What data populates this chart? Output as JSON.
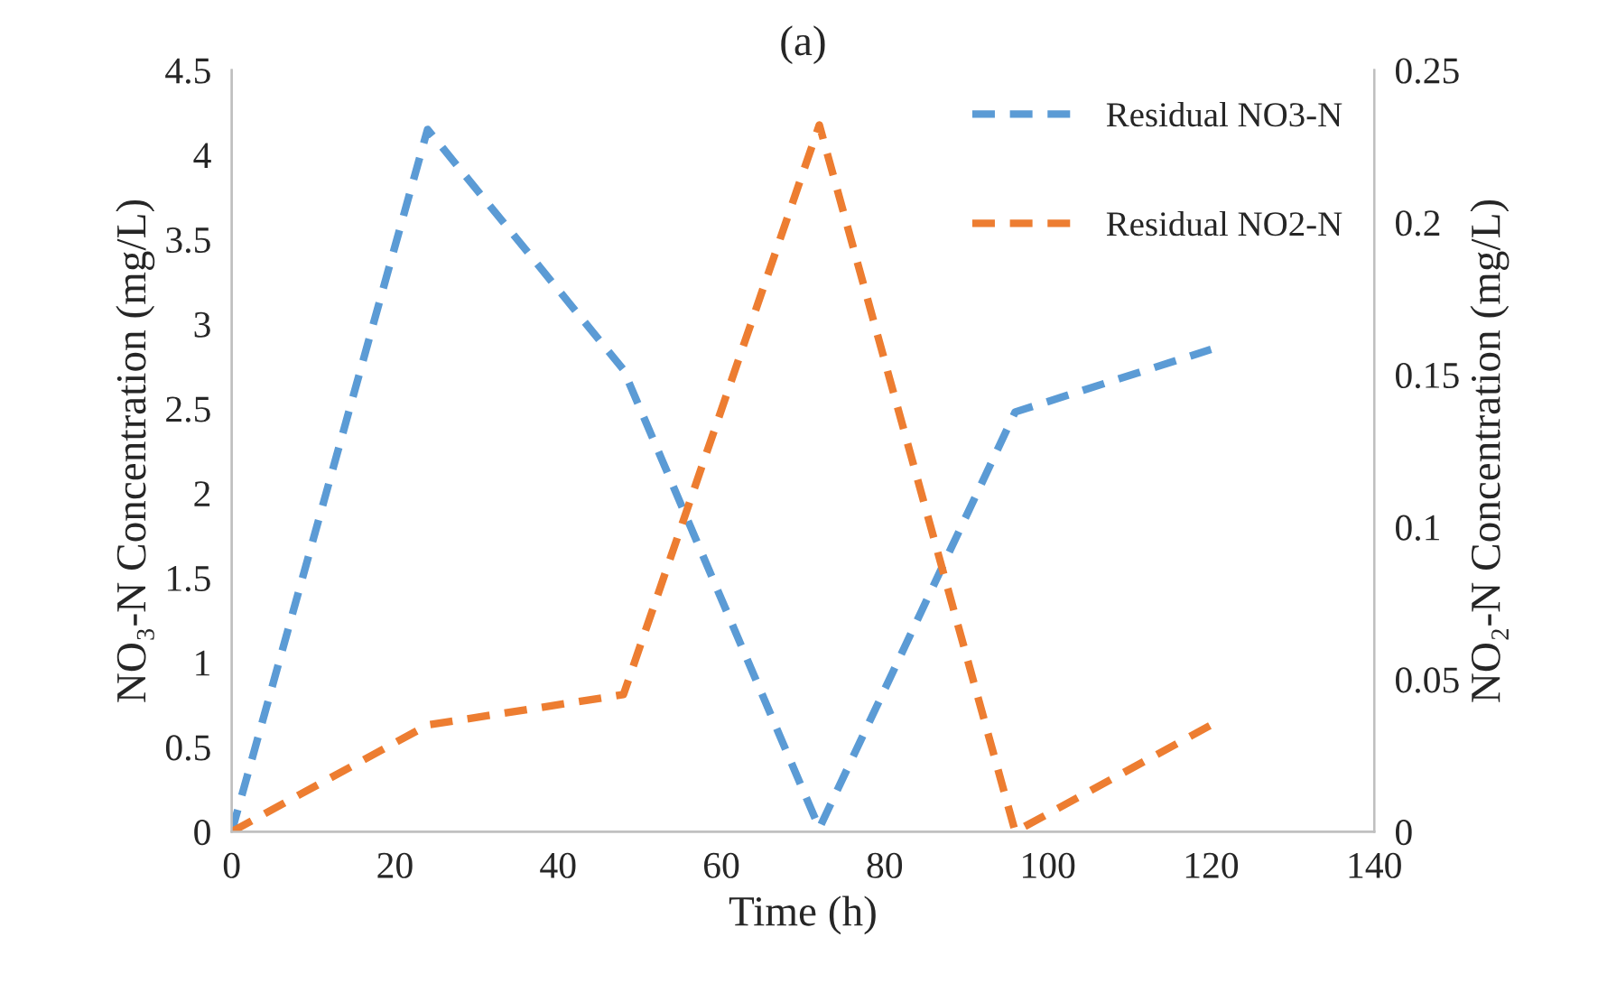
{
  "chart_data": {
    "type": "line",
    "title": "(a)",
    "xlabel": "Time (h)",
    "ylabel": "NO₃-N Concentration (mg/L)",
    "y2label": "NO₂-N Concentration (mg/L)",
    "x": [
      0,
      24,
      48,
      72,
      96,
      120
    ],
    "series": [
      {
        "name": "Residual NO3-N",
        "color": "#5b9bd5",
        "values": [
          0,
          4.15,
          2.73,
          0.02,
          2.48,
          2.85
        ]
      },
      {
        "name": "Residual NO2-N",
        "color": "#ed7d31",
        "values": [
          0,
          0.035,
          0.045,
          0.232,
          0,
          0.035
        ],
        "axis": "y2"
      }
    ],
    "xlim": [
      0,
      140
    ],
    "xticks": [
      0,
      20,
      40,
      60,
      80,
      100,
      120,
      140
    ],
    "ylim": [
      0,
      4.5
    ],
    "yticks": [
      0,
      0.5,
      1,
      1.5,
      2,
      2.5,
      3,
      3.5,
      4,
      4.5
    ],
    "y2lim": [
      0,
      0.25
    ],
    "y2ticks": [
      0,
      0.05,
      0.1,
      0.15,
      0.2,
      0.25
    ],
    "line_style": "dashed",
    "marker": "none",
    "grid": false,
    "legend": "top right"
  }
}
